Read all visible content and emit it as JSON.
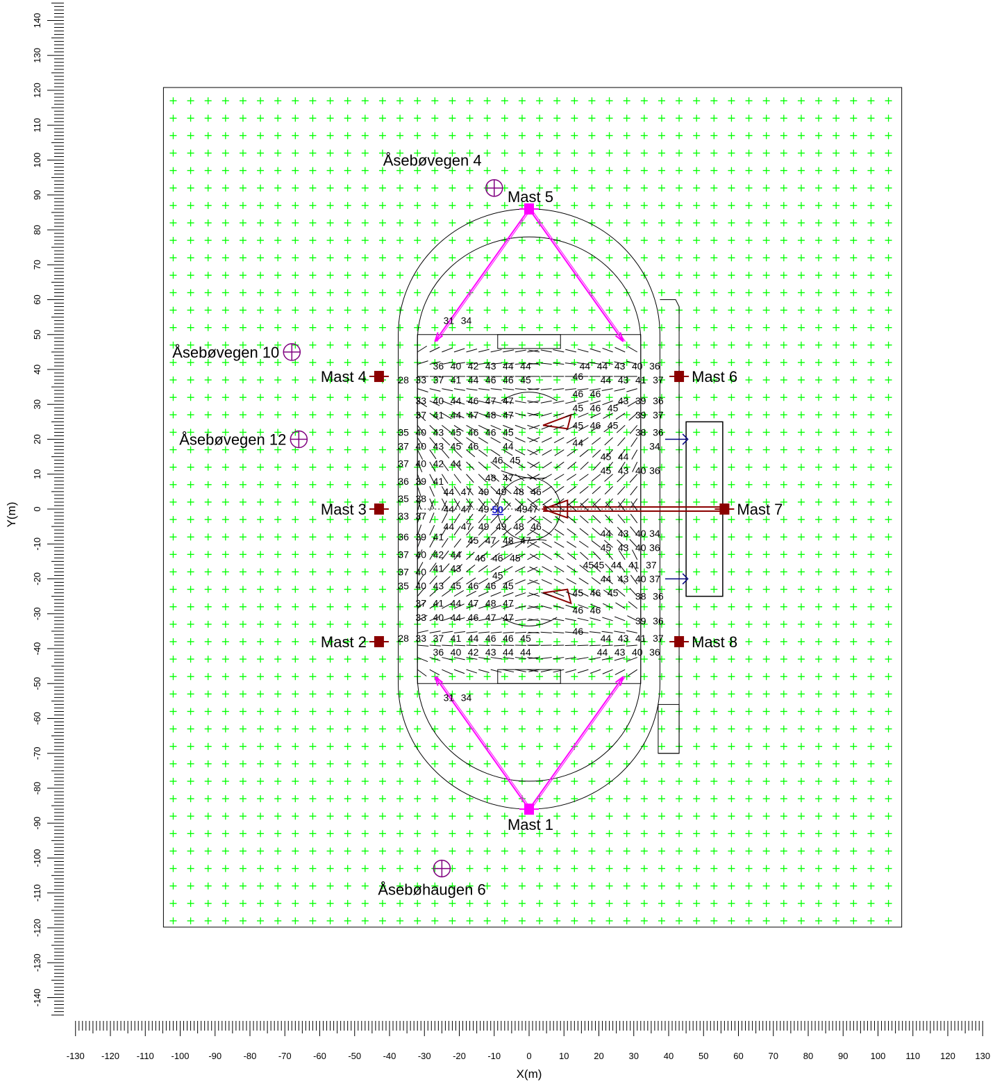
{
  "axes": {
    "x_title": "X(m)",
    "y_title": "Y(m)",
    "x_range": [
      -130,
      130
    ],
    "y_range": [
      -140,
      140
    ],
    "x_ticks": [
      "-130",
      "-120",
      "-110",
      "-100",
      "-90",
      "-80",
      "-70",
      "-60",
      "-50",
      "-40",
      "-30",
      "-20",
      "-10",
      "0",
      "10",
      "20",
      "30",
      "40",
      "50",
      "60",
      "70",
      "80",
      "90",
      "100",
      "110",
      "120",
      "130"
    ],
    "y_ticks": [
      "-140",
      "-130",
      "-120",
      "-110",
      "-100",
      "-90",
      "-80",
      "-70",
      "-60",
      "-50",
      "-40",
      "-30",
      "-20",
      "-10",
      "0",
      "10",
      "20",
      "30",
      "40",
      "50",
      "60",
      "70",
      "80",
      "90",
      "100",
      "110",
      "120",
      "130",
      "140"
    ]
  },
  "calc_area": {
    "x_min": -104,
    "x_max": 106,
    "y_min": -119,
    "y_max": 120,
    "grid_spacing": 5,
    "grid_color": "#00ff00"
  },
  "masts": [
    {
      "name": "Mast 1",
      "x": 0,
      "y": -86
    },
    {
      "name": "Mast 2",
      "x": -43,
      "y": -38
    },
    {
      "name": "Mast 3",
      "x": -43,
      "y": 0
    },
    {
      "name": "Mast 4",
      "x": -43,
      "y": 38
    },
    {
      "name": "Mast 5",
      "x": 0,
      "y": 86
    },
    {
      "name": "Mast 6",
      "x": 43,
      "y": 38
    },
    {
      "name": "Mast 7",
      "x": 56,
      "y": 0
    },
    {
      "name": "Mast 8",
      "x": 43,
      "y": -38
    }
  ],
  "receivers": [
    {
      "name": "Åsebøvegen 4",
      "x": -10,
      "y": 92
    },
    {
      "name": "Åsebøvegen 10",
      "x": -68,
      "y": 45
    },
    {
      "name": "Åsebøvegen 12",
      "x": -66,
      "y": 20
    },
    {
      "name": "Åsebøhaugen 6",
      "x": -25,
      "y": -103
    }
  ],
  "values": [
    {
      "v": "31",
      "x": -23,
      "y": 54
    },
    {
      "v": "34",
      "x": -18,
      "y": 54
    },
    {
      "v": "36",
      "x": -26,
      "y": 41
    },
    {
      "v": "40",
      "x": -21,
      "y": 41
    },
    {
      "v": "42",
      "x": -16,
      "y": 41
    },
    {
      "v": "43",
      "x": -11,
      "y": 41
    },
    {
      "v": "44",
      "x": -6,
      "y": 41
    },
    {
      "v": "44",
      "x": -1,
      "y": 41
    },
    {
      "v": "44",
      "x": 16,
      "y": 41
    },
    {
      "v": "44",
      "x": 21,
      "y": 41
    },
    {
      "v": "43",
      "x": 26,
      "y": 41
    },
    {
      "v": "40",
      "x": 31,
      "y": 41
    },
    {
      "v": "36",
      "x": 36,
      "y": 41
    },
    {
      "v": "28",
      "x": -36,
      "y": 37
    },
    {
      "v": "33",
      "x": -31,
      "y": 37
    },
    {
      "v": "37",
      "x": -26,
      "y": 37
    },
    {
      "v": "41",
      "x": -21,
      "y": 37
    },
    {
      "v": "44",
      "x": -16,
      "y": 37
    },
    {
      "v": "46",
      "x": -11,
      "y": 37
    },
    {
      "v": "46",
      "x": -6,
      "y": 37
    },
    {
      "v": "45",
      "x": -1,
      "y": 37
    },
    {
      "v": "46",
      "x": 14,
      "y": 38
    },
    {
      "v": "44",
      "x": 22,
      "y": 37
    },
    {
      "v": "43",
      "x": 27,
      "y": 37
    },
    {
      "v": "41",
      "x": 32,
      "y": 37
    },
    {
      "v": "37",
      "x": 37,
      "y": 37
    },
    {
      "v": "33",
      "x": -31,
      "y": 31
    },
    {
      "v": "40",
      "x": -26,
      "y": 31
    },
    {
      "v": "44",
      "x": -21,
      "y": 31
    },
    {
      "v": "46",
      "x": -16,
      "y": 31
    },
    {
      "v": "47",
      "x": -11,
      "y": 31
    },
    {
      "v": "47",
      "x": -6,
      "y": 31
    },
    {
      "v": "46",
      "x": 14,
      "y": 33
    },
    {
      "v": "46",
      "x": 19,
      "y": 33
    },
    {
      "v": "43",
      "x": 27,
      "y": 31
    },
    {
      "v": "39",
      "x": 32,
      "y": 31
    },
    {
      "v": "36",
      "x": 37,
      "y": 31
    },
    {
      "v": "37",
      "x": -31,
      "y": 27
    },
    {
      "v": "41",
      "x": -26,
      "y": 27
    },
    {
      "v": "44",
      "x": -21,
      "y": 27
    },
    {
      "v": "47",
      "x": -16,
      "y": 27
    },
    {
      "v": "48",
      "x": -11,
      "y": 27
    },
    {
      "v": "47",
      "x": -6,
      "y": 27
    },
    {
      "v": "45",
      "x": 14,
      "y": 29
    },
    {
      "v": "46",
      "x": 19,
      "y": 29
    },
    {
      "v": "45",
      "x": 24,
      "y": 29
    },
    {
      "v": "39",
      "x": 32,
      "y": 27
    },
    {
      "v": "37",
      "x": 37,
      "y": 27
    },
    {
      "v": "35",
      "x": -36,
      "y": 22
    },
    {
      "v": "40",
      "x": -31,
      "y": 22
    },
    {
      "v": "43",
      "x": -26,
      "y": 22
    },
    {
      "v": "45",
      "x": -21,
      "y": 22
    },
    {
      "v": "46",
      "x": -16,
      "y": 22
    },
    {
      "v": "46",
      "x": -11,
      "y": 22
    },
    {
      "v": "45",
      "x": -6,
      "y": 22
    },
    {
      "v": "45",
      "x": 14,
      "y": 24
    },
    {
      "v": "46",
      "x": 19,
      "y": 24
    },
    {
      "v": "45",
      "x": 24,
      "y": 24
    },
    {
      "v": "38",
      "x": 32,
      "y": 22
    },
    {
      "v": "36",
      "x": 37,
      "y": 22
    },
    {
      "v": "37",
      "x": -36,
      "y": 18
    },
    {
      "v": "40",
      "x": -31,
      "y": 18
    },
    {
      "v": "43",
      "x": -26,
      "y": 18
    },
    {
      "v": "45",
      "x": -21,
      "y": 18
    },
    {
      "v": "46",
      "x": -16,
      "y": 18
    },
    {
      "v": "44",
      "x": -6,
      "y": 18
    },
    {
      "v": "44",
      "x": 14,
      "y": 19
    },
    {
      "v": "34",
      "x": 36,
      "y": 18
    },
    {
      "v": "37",
      "x": -36,
      "y": 13
    },
    {
      "v": "40",
      "x": -31,
      "y": 13
    },
    {
      "v": "42",
      "x": -26,
      "y": 13
    },
    {
      "v": "44",
      "x": -21,
      "y": 13
    },
    {
      "v": "46",
      "x": -9,
      "y": 14
    },
    {
      "v": "45",
      "x": -4,
      "y": 14
    },
    {
      "v": "45",
      "x": 22,
      "y": 15
    },
    {
      "v": "44",
      "x": 27,
      "y": 15
    },
    {
      "v": "36",
      "x": -36,
      "y": 8
    },
    {
      "v": "39",
      "x": -31,
      "y": 8
    },
    {
      "v": "41",
      "x": -26,
      "y": 8
    },
    {
      "v": "48",
      "x": -11,
      "y": 9
    },
    {
      "v": "47",
      "x": -6,
      "y": 9
    },
    {
      "v": "45",
      "x": 22,
      "y": 11
    },
    {
      "v": "43",
      "x": 27,
      "y": 11
    },
    {
      "v": "40",
      "x": 32,
      "y": 11
    },
    {
      "v": "36",
      "x": 36,
      "y": 11
    },
    {
      "v": "44",
      "x": -23,
      "y": 5
    },
    {
      "v": "47",
      "x": -18,
      "y": 5
    },
    {
      "v": "49",
      "x": -13,
      "y": 5
    },
    {
      "v": "49",
      "x": -8,
      "y": 5
    },
    {
      "v": "48",
      "x": -3,
      "y": 5
    },
    {
      "v": "46",
      "x": 2,
      "y": 5
    },
    {
      "v": "35",
      "x": -36,
      "y": 3
    },
    {
      "v": "38",
      "x": -31,
      "y": 3
    },
    {
      "v": "44",
      "x": -23,
      "y": 0
    },
    {
      "v": "47",
      "x": -18,
      "y": 0
    },
    {
      "v": "49",
      "x": -13,
      "y": 0
    },
    {
      "v": "49",
      "x": -2,
      "y": 0
    },
    {
      "v": "47",
      "x": 1,
      "y": 0
    },
    {
      "v": "33",
      "x": -36,
      "y": -2
    },
    {
      "v": "37",
      "x": -31,
      "y": -2
    },
    {
      "v": "44",
      "x": -23,
      "y": -5
    },
    {
      "v": "47",
      "x": -18,
      "y": -5
    },
    {
      "v": "49",
      "x": -13,
      "y": -5
    },
    {
      "v": "49",
      "x": -8,
      "y": -5
    },
    {
      "v": "48",
      "x": -3,
      "y": -5
    },
    {
      "v": "46",
      "x": 2,
      "y": -5
    },
    {
      "v": "44",
      "x": 22,
      "y": -7
    },
    {
      "v": "43",
      "x": 27,
      "y": -7
    },
    {
      "v": "40",
      "x": 32,
      "y": -7
    },
    {
      "v": "34",
      "x": 36,
      "y": -7
    },
    {
      "v": "36",
      "x": -36,
      "y": -8
    },
    {
      "v": "39",
      "x": -31,
      "y": -8
    },
    {
      "v": "41",
      "x": -26,
      "y": -8
    },
    {
      "v": "45",
      "x": -16,
      "y": -9
    },
    {
      "v": "47",
      "x": -11,
      "y": -9
    },
    {
      "v": "48",
      "x": -6,
      "y": -9
    },
    {
      "v": "47",
      "x": -1,
      "y": -9
    },
    {
      "v": "45",
      "x": 22,
      "y": -11
    },
    {
      "v": "43",
      "x": 27,
      "y": -11
    },
    {
      "v": "40",
      "x": 32,
      "y": -11
    },
    {
      "v": "36",
      "x": 36,
      "y": -11
    },
    {
      "v": "37",
      "x": -36,
      "y": -13
    },
    {
      "v": "40",
      "x": -31,
      "y": -13
    },
    {
      "v": "42",
      "x": -26,
      "y": -13
    },
    {
      "v": "44",
      "x": -21,
      "y": -13
    },
    {
      "v": "46",
      "x": -14,
      "y": -14
    },
    {
      "v": "46",
      "x": -9,
      "y": -14
    },
    {
      "v": "45",
      "x": -4,
      "y": -14
    },
    {
      "v": "45",
      "x": 17,
      "y": -16
    },
    {
      "v": "45",
      "x": 20,
      "y": -16
    },
    {
      "v": "44",
      "x": 25,
      "y": -16
    },
    {
      "v": "41",
      "x": 30,
      "y": -16
    },
    {
      "v": "37",
      "x": 35,
      "y": -16
    },
    {
      "v": "37",
      "x": -36,
      "y": -18
    },
    {
      "v": "40",
      "x": -31,
      "y": -18
    },
    {
      "v": "41",
      "x": -26,
      "y": -17
    },
    {
      "v": "43",
      "x": -21,
      "y": -17
    },
    {
      "v": "45",
      "x": -9,
      "y": -19
    },
    {
      "v": "44",
      "x": 22,
      "y": -20
    },
    {
      "v": "43",
      "x": 27,
      "y": -20
    },
    {
      "v": "40",
      "x": 32,
      "y": -20
    },
    {
      "v": "37",
      "x": 36,
      "y": -20
    },
    {
      "v": "35",
      "x": -36,
      "y": -22
    },
    {
      "v": "40",
      "x": -31,
      "y": -22
    },
    {
      "v": "43",
      "x": -26,
      "y": -22
    },
    {
      "v": "45",
      "x": -21,
      "y": -22
    },
    {
      "v": "46",
      "x": -16,
      "y": -22
    },
    {
      "v": "46",
      "x": -11,
      "y": -22
    },
    {
      "v": "45",
      "x": -6,
      "y": -22
    },
    {
      "v": "45",
      "x": 14,
      "y": -24
    },
    {
      "v": "46",
      "x": 19,
      "y": -24
    },
    {
      "v": "45",
      "x": 24,
      "y": -24
    },
    {
      "v": "38",
      "x": 32,
      "y": -25
    },
    {
      "v": "36",
      "x": 37,
      "y": -25
    },
    {
      "v": "37",
      "x": -31,
      "y": -27
    },
    {
      "v": "41",
      "x": -26,
      "y": -27
    },
    {
      "v": "44",
      "x": -21,
      "y": -27
    },
    {
      "v": "47",
      "x": -16,
      "y": -27
    },
    {
      "v": "48",
      "x": -11,
      "y": -27
    },
    {
      "v": "47",
      "x": -6,
      "y": -27
    },
    {
      "v": "46",
      "x": 14,
      "y": -29
    },
    {
      "v": "46",
      "x": 19,
      "y": -29
    },
    {
      "v": "33",
      "x": -31,
      "y": -31
    },
    {
      "v": "40",
      "x": -26,
      "y": -31
    },
    {
      "v": "44",
      "x": -21,
      "y": -31
    },
    {
      "v": "46",
      "x": -16,
      "y": -31
    },
    {
      "v": "47",
      "x": -11,
      "y": -31
    },
    {
      "v": "47",
      "x": -6,
      "y": -31
    },
    {
      "v": "39",
      "x": 32,
      "y": -32
    },
    {
      "v": "36",
      "x": 37,
      "y": -32
    },
    {
      "v": "28",
      "x": -36,
      "y": -37
    },
    {
      "v": "33",
      "x": -31,
      "y": -37
    },
    {
      "v": "37",
      "x": -26,
      "y": -37
    },
    {
      "v": "41",
      "x": -21,
      "y": -37
    },
    {
      "v": "44",
      "x": -16,
      "y": -37
    },
    {
      "v": "46",
      "x": -11,
      "y": -37
    },
    {
      "v": "46",
      "x": -6,
      "y": -37
    },
    {
      "v": "45",
      "x": -1,
      "y": -37
    },
    {
      "v": "46",
      "x": 14,
      "y": -35
    },
    {
      "v": "44",
      "x": 22,
      "y": -37
    },
    {
      "v": "43",
      "x": 27,
      "y": -37
    },
    {
      "v": "41",
      "x": 32,
      "y": -37
    },
    {
      "v": "37",
      "x": 37,
      "y": -37
    },
    {
      "v": "36",
      "x": -26,
      "y": -41
    },
    {
      "v": "40",
      "x": -21,
      "y": -41
    },
    {
      "v": "42",
      "x": -16,
      "y": -41
    },
    {
      "v": "43",
      "x": -11,
      "y": -41
    },
    {
      "v": "44",
      "x": -6,
      "y": -41
    },
    {
      "v": "44",
      "x": -1,
      "y": -41
    },
    {
      "v": "44",
      "x": 21,
      "y": -41
    },
    {
      "v": "43",
      "x": 26,
      "y": -41
    },
    {
      "v": "40",
      "x": 31,
      "y": -41
    },
    {
      "v": "36",
      "x": 36,
      "y": -41
    },
    {
      "v": "31",
      "x": -23,
      "y": -54
    },
    {
      "v": "34",
      "x": -18,
      "y": -54
    }
  ],
  "max_value": {
    "v": "50",
    "x": -9,
    "y": 0,
    "color": "#1a1acc"
  },
  "colors": {
    "grid": "#00ff00",
    "mast": "#8b0000",
    "beam_magenta": "#ff00ff",
    "receiver": "#800080",
    "outline": "#000000"
  }
}
